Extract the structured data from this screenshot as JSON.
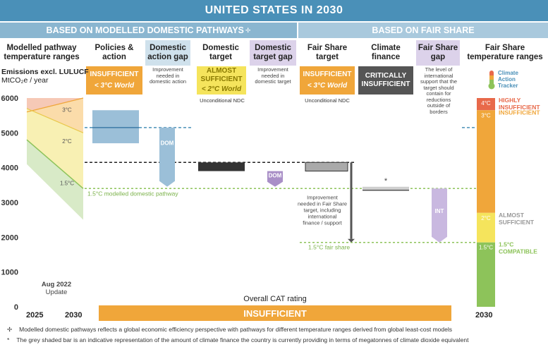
{
  "title": "UNITED STATES IN 2030",
  "sections": {
    "left": "BASED ON MODELLED DOMESTIC PATHWAYS",
    "left_mark": "✢",
    "right": "BASED ON FAIR SHARE"
  },
  "columns": {
    "pathway": "Modelled pathway temperature ranges",
    "policies": "Policies & action",
    "dom_gap": "Domestic action gap",
    "dom_target": "Domestic target",
    "dom_target_gap": "Domestic target gap",
    "fair_target": "Fair Share target",
    "finance": "Climate finance",
    "fair_gap": "Fair Share gap",
    "fair_ranges": "Fair Share temperature ranges"
  },
  "ratings": {
    "policies_line1": "INSUFFICIENT",
    "policies_line2": "< 3°C World",
    "dom_target_line1": "ALMOST",
    "dom_target_line2": "SUFFICIENT",
    "dom_target_line3": "< 2°C World",
    "fair_target_line1": "INSUFFICIENT",
    "fair_target_line2": "< 3°C World",
    "finance_line1": "CRITICALLY",
    "finance_line2": "INSUFFICIENT"
  },
  "notes": {
    "dom_gap": "Improvement needed in domestic action",
    "dom_target_gap": "Improvement needed in domestic target",
    "fair_gap": "The level of international support that the target should contain for reductions outside of borders",
    "unconditional_1": "Unconditional NDC",
    "unconditional_2": "Unconditional NDC",
    "fair_share_improvement": "Improvement needed in Fair Share target, including international finance / support"
  },
  "logo": {
    "line1": "Climate",
    "line2": "Action",
    "line3": "Tracker"
  },
  "y_axis": {
    "label_line1": "Emissions excl. LULUCF",
    "label_line2": "MtCO₂e / year",
    "ticks": [
      "6000",
      "5000",
      "4000",
      "3000",
      "2000",
      "1000",
      "0"
    ]
  },
  "update": {
    "line1": "Aug 2022",
    "line2": "Update"
  },
  "x_labels": {
    "start": "2025",
    "end": "2030",
    "right": "2030"
  },
  "overall": {
    "label": "Overall CAT rating",
    "value": "INSUFFICIENT"
  },
  "bar_labels": {
    "dom": "DOM",
    "dom2": "DOM",
    "int": "INT",
    "star": "*"
  },
  "line_labels": {
    "domestic_15": "1.5°C modelled domestic pathway",
    "fair_15": "1.5°C fair share"
  },
  "pathway_labels": {
    "t3": "3°C",
    "t2": "2°C",
    "t15": "1.5°C"
  },
  "legend": [
    {
      "label_line1": "HIGHLY",
      "label_line2": "INSUFFICIENT",
      "temp": "4°C",
      "color": "#e8694a"
    },
    {
      "label_line1": "INSUFFICIENT",
      "label_line2": "",
      "temp": "3°C",
      "color": "#f0a63a"
    },
    {
      "label_line1": "ALMOST",
      "label_line2": "SUFFICIENT",
      "temp": "2°C",
      "color": "#f5e45c"
    },
    {
      "label_line1": "1.5°C",
      "label_line2": "COMPATIBLE",
      "temp": "1.5°C",
      "color": "#8dc35a"
    }
  ],
  "footnotes": {
    "f1_mark": "✢",
    "f1": "Modelled domestic pathways reflects a global economic efficiency perspective with pathways for different temperature ranges derived from global least-cost models",
    "f2_mark": "*",
    "f2": "The grey shaded bar is an indicative representation of the amount of climate finance the country is currently providing in terms of megatonnes of climate dioxide equivalent"
  },
  "colors": {
    "title_bg": "#4a90b8",
    "insufficient": "#f0a63a",
    "almost_sufficient": "#f5e45c",
    "compatible": "#8dc35a",
    "highly_insufficient": "#e8694a",
    "critically_insufficient": "#555555",
    "policy_blue": "#9bbfd8",
    "dom_purple": "#a98fc7"
  },
  "chart_data": {
    "type": "bar",
    "ylabel": "Emissions excl. LULUCF MtCO₂e / year",
    "ylim": [
      0,
      6000
    ],
    "y_ticks": [
      0,
      1000,
      2000,
      3000,
      4000,
      5000,
      6000
    ],
    "x_years": [
      2025,
      2030
    ],
    "series": [
      {
        "name": "Policies & action",
        "values": [
          4700,
          5650
        ],
        "current": 5150
      },
      {
        "name": "Domestic action gap",
        "values": [
          3450,
          5150
        ]
      },
      {
        "name": "Domestic target",
        "values": [
          3900,
          4150
        ]
      },
      {
        "name": "Domestic target gap",
        "values": [
          3450,
          3900
        ]
      },
      {
        "name": "Fair Share target",
        "values": [
          3900,
          4150
        ]
      },
      {
        "name": "Climate finance",
        "values": [
          3350,
          3450
        ]
      },
      {
        "name": "Fair Share gap",
        "values": [
          1850,
          3400
        ]
      },
      {
        "name": "1.5°C modelled domestic pathway",
        "values": [
          3400
        ]
      },
      {
        "name": "1.5°C fair share",
        "values": [
          1850
        ]
      }
    ],
    "fair_share_ranges": [
      {
        "temp": "4°C",
        "range": [
          5650,
          6000
        ]
      },
      {
        "temp": "3°C",
        "range": [
          2700,
          5650
        ]
      },
      {
        "temp": "2°C",
        "range": [
          1850,
          2700
        ]
      },
      {
        "temp": "1.5°C",
        "range": [
          0,
          1850
        ]
      }
    ]
  }
}
